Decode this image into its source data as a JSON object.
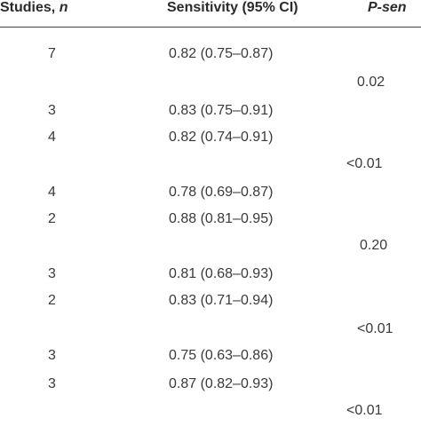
{
  "header": {
    "studies_label": "Studies, ",
    "studies_var": "n",
    "sensitivity_label": "Sensitivity (95% CI)",
    "psen_label": "P-sen"
  },
  "rows": [
    {
      "studies": "7",
      "sensitivity": "0.82 (0.75–0.87)",
      "psen": ""
    },
    {
      "studies": "",
      "sensitivity": "",
      "psen": "0.02"
    },
    {
      "studies": "3",
      "sensitivity": "0.83 (0.75–0.91)",
      "psen": ""
    },
    {
      "studies": "4",
      "sensitivity": "0.82 (0.74–0.91)",
      "psen": ""
    },
    {
      "studies": "",
      "sensitivity": "",
      "psen": "<0.01"
    },
    {
      "studies": "4",
      "sensitivity": "0.78 (0.69–0.87)",
      "psen": ""
    },
    {
      "studies": "2",
      "sensitivity": "0.88 (0.81–0.95)",
      "psen": ""
    },
    {
      "studies": "",
      "sensitivity": "",
      "psen": "0.20"
    },
    {
      "studies": "3",
      "sensitivity": "0.81 (0.68–0.93)",
      "psen": ""
    },
    {
      "studies": "2",
      "sensitivity": "0.83 (0.71–0.94)",
      "psen": ""
    },
    {
      "studies": "",
      "sensitivity": "",
      "psen": "<0.01"
    },
    {
      "studies": "3",
      "sensitivity": "0.75 (0.63–0.86)",
      "psen": ""
    },
    {
      "studies": "3",
      "sensitivity": "0.87 (0.82–0.93)",
      "psen": ""
    },
    {
      "studies": "",
      "sensitivity": "",
      "psen": "<0.01"
    }
  ]
}
